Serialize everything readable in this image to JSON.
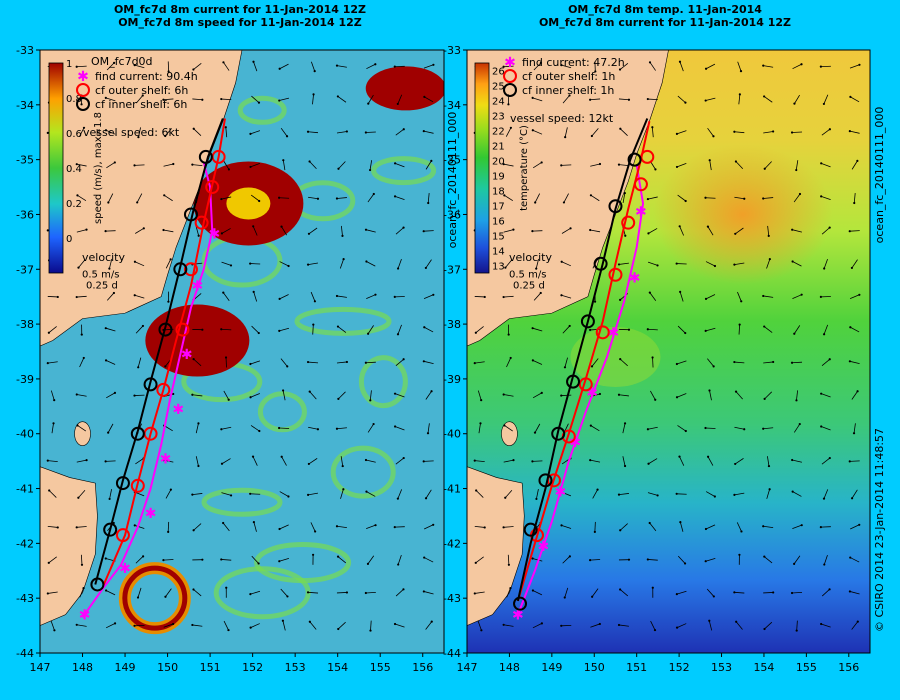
{
  "header": {
    "left_line1": "OM_fc7d 8m current for 11-Jan-2014 12Z",
    "left_line2": "OM_fc7d 8m speed for 11-Jan-2014 12Z",
    "right_line1": "OM_fc7d 8m temp. 11-Jan-2014",
    "right_line2": "OM_fc7d 8m current for 11-Jan-2014 12Z"
  },
  "side_text": {
    "left_panel_tag": "ocean_fc_20140111_000",
    "right_panel_tag": "ocean_fc_20140111_000",
    "credit": "© CSIRO 2014   23-Jan-2014 11:48:57"
  },
  "chart_data": [
    {
      "type": "map",
      "panel": "speed",
      "x_ticks": [
        147,
        148,
        149,
        150,
        151,
        152,
        153,
        154,
        155,
        156
      ],
      "y_ticks": [
        -33,
        -34,
        -35,
        -36,
        -37,
        -38,
        -39,
        -40,
        -41,
        -42,
        -43,
        -44
      ],
      "xlim": [
        147,
        156.5
      ],
      "ylim": [
        -44,
        -33
      ],
      "colorbar": {
        "label": "speed (m/s),  max=1.8",
        "ticks": [
          "1",
          "0.8",
          "0.6",
          "0.4",
          "0.2",
          "0"
        ],
        "range": [
          -0.2,
          1
        ]
      },
      "legend": {
        "title": "OM_fc7d0d",
        "items": [
          "find current: 90.4h",
          "cf outer shelf: 6h",
          "cf inner shelf: 6h"
        ],
        "vessel": "vessel speed: 6kt",
        "velocity_title": "velocity",
        "velocity_scale": "0.5 m/s",
        "velocity_time": "0.25 d"
      },
      "series": [
        {
          "name": "find current: 90.4h",
          "marker": "asterisk",
          "color": "#ff00ff",
          "points": [
            [
              148.0,
              -43.35
            ],
            [
              148.5,
              -42.8
            ],
            [
              148.9,
              -42.4
            ],
            [
              149.3,
              -41.7
            ],
            [
              149.6,
              -41.0
            ],
            [
              149.85,
              -40.2
            ],
            [
              150.05,
              -39.4
            ],
            [
              150.3,
              -38.55
            ],
            [
              150.55,
              -37.7
            ],
            [
              150.85,
              -37.0
            ],
            [
              151.05,
              -36.3
            ],
            [
              151.0,
              -35.5
            ],
            [
              150.85,
              -35.05
            ]
          ],
          "markers": [
            [
              148.05,
              -43.3
            ],
            [
              149.0,
              -42.45
            ],
            [
              149.6,
              -41.45
            ],
            [
              149.95,
              -40.45
            ],
            [
              150.25,
              -39.55
            ],
            [
              150.45,
              -38.55
            ],
            [
              150.7,
              -37.3
            ],
            [
              151.1,
              -36.35
            ]
          ]
        },
        {
          "name": "cf outer shelf: 6h",
          "marker": "circle",
          "color": "#ff0000",
          "points": [
            [
              148.5,
              -42.75
            ],
            [
              149.0,
              -41.85
            ],
            [
              149.3,
              -40.9
            ],
            [
              149.6,
              -40.0
            ],
            [
              149.9,
              -39.2
            ],
            [
              150.2,
              -38.3
            ],
            [
              150.55,
              -37.3
            ],
            [
              150.85,
              -36.15
            ],
            [
              151.2,
              -34.95
            ],
            [
              151.35,
              -34.25
            ]
          ],
          "markers": [
            [
              148.95,
              -41.85
            ],
            [
              149.3,
              -40.95
            ],
            [
              149.6,
              -40.0
            ],
            [
              149.9,
              -39.2
            ],
            [
              150.35,
              -38.1
            ],
            [
              150.55,
              -37.0
            ],
            [
              150.8,
              -36.15
            ],
            [
              151.05,
              -35.5
            ],
            [
              151.2,
              -34.95
            ]
          ]
        },
        {
          "name": "cf inner shelf: 6h",
          "marker": "circle",
          "color": "#000000",
          "points": [
            [
              148.3,
              -42.75
            ],
            [
              148.65,
              -41.75
            ],
            [
              148.95,
              -40.85
            ],
            [
              149.3,
              -39.95
            ],
            [
              149.6,
              -39.05
            ],
            [
              149.95,
              -38.05
            ],
            [
              150.3,
              -36.95
            ],
            [
              150.6,
              -35.95
            ],
            [
              150.95,
              -34.95
            ],
            [
              151.3,
              -34.25
            ]
          ],
          "markers": [
            [
              148.35,
              -42.75
            ],
            [
              148.65,
              -41.75
            ],
            [
              148.95,
              -40.9
            ],
            [
              149.3,
              -40.0
            ],
            [
              149.6,
              -39.1
            ],
            [
              149.95,
              -38.1
            ],
            [
              150.3,
              -37.0
            ],
            [
              150.55,
              -36.0
            ],
            [
              150.9,
              -34.95
            ]
          ]
        }
      ]
    },
    {
      "type": "map",
      "panel": "temperature",
      "x_ticks": [
        147,
        148,
        149,
        150,
        151,
        152,
        153,
        154,
        155,
        156
      ],
      "y_ticks": [
        -33,
        -34,
        -35,
        -36,
        -37,
        -38,
        -39,
        -40,
        -41,
        -42,
        -43,
        -44
      ],
      "xlim": [
        147,
        156.5
      ],
      "ylim": [
        -44,
        -33
      ],
      "colorbar": {
        "label": "temperature (°C)",
        "ticks": [
          "26",
          "25",
          "24",
          "23",
          "22",
          "21",
          "20",
          "19",
          "18",
          "17",
          "16",
          "15",
          "14",
          "13"
        ],
        "range": [
          12.5,
          26.5
        ]
      },
      "legend": {
        "items": [
          "find current: 47.2h",
          "cf outer shelf: 1h",
          "cf inner shelf: 1h"
        ],
        "vessel": "vessel speed: 12kt",
        "velocity_title": "velocity",
        "velocity_scale": "0.5 m/s",
        "velocity_time": "0.25 d"
      },
      "series": [
        {
          "name": "find current: 47.2h",
          "marker": "asterisk",
          "color": "#ff00ff",
          "points": [
            [
              148.2,
              -43.3
            ],
            [
              148.6,
              -42.5
            ],
            [
              149.0,
              -41.6
            ],
            [
              149.4,
              -40.5
            ],
            [
              149.8,
              -39.6
            ],
            [
              150.3,
              -38.6
            ],
            [
              150.7,
              -37.6
            ],
            [
              151.0,
              -36.6
            ],
            [
              151.15,
              -35.8
            ],
            [
              151.0,
              -35.1
            ]
          ],
          "markers": [
            [
              148.2,
              -43.3
            ],
            [
              148.8,
              -42.05
            ],
            [
              149.2,
              -41.05
            ],
            [
              149.55,
              -40.15
            ],
            [
              149.95,
              -39.25
            ],
            [
              150.45,
              -38.15
            ],
            [
              150.95,
              -37.15
            ],
            [
              151.1,
              -35.95
            ]
          ]
        },
        {
          "name": "cf outer shelf: 1h",
          "marker": "circle",
          "color": "#ff0000",
          "points": [
            [
              148.2,
              -43.05
            ],
            [
              148.6,
              -42.0
            ],
            [
              149.0,
              -40.95
            ],
            [
              149.4,
              -40.0
            ],
            [
              149.8,
              -39.0
            ],
            [
              150.2,
              -37.95
            ],
            [
              150.5,
              -36.9
            ],
            [
              150.8,
              -35.9
            ],
            [
              151.1,
              -35.0
            ],
            [
              151.3,
              -34.3
            ]
          ],
          "markers": [
            [
              148.65,
              -41.85
            ],
            [
              149.05,
              -40.85
            ],
            [
              149.4,
              -40.05
            ],
            [
              149.8,
              -39.1
            ],
            [
              150.2,
              -38.15
            ],
            [
              150.5,
              -37.1
            ],
            [
              150.8,
              -36.15
            ],
            [
              151.1,
              -35.45
            ],
            [
              151.25,
              -34.95
            ]
          ]
        },
        {
          "name": "cf inner shelf: 1h",
          "marker": "circle",
          "color": "#000000",
          "points": [
            [
              148.2,
              -43.05
            ],
            [
              148.5,
              -42.0
            ],
            [
              148.85,
              -41.0
            ],
            [
              149.15,
              -39.95
            ],
            [
              149.5,
              -38.95
            ],
            [
              149.85,
              -37.95
            ],
            [
              150.2,
              -36.9
            ],
            [
              150.5,
              -35.9
            ],
            [
              150.85,
              -35.0
            ],
            [
              151.25,
              -34.25
            ]
          ],
          "markers": [
            [
              148.25,
              -43.1
            ],
            [
              148.5,
              -41.75
            ],
            [
              148.85,
              -40.85
            ],
            [
              149.15,
              -40.0
            ],
            [
              149.5,
              -39.05
            ],
            [
              149.85,
              -37.95
            ],
            [
              150.15,
              -36.9
            ],
            [
              150.5,
              -35.85
            ],
            [
              150.95,
              -35.0
            ]
          ]
        }
      ]
    }
  ]
}
